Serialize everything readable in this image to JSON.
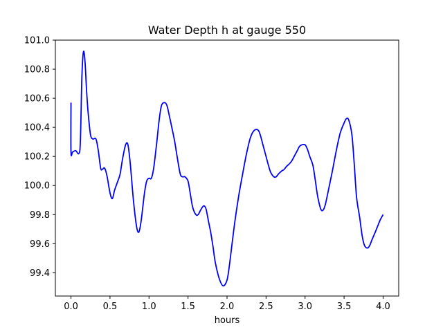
{
  "chart_data": {
    "type": "line",
    "title": "Water Depth h at gauge 550",
    "xlabel": "hours",
    "ylabel": "",
    "xlim": [
      -0.2,
      4.2
    ],
    "ylim": [
      99.24,
      101.0
    ],
    "grid": false,
    "legend": "none",
    "x_ticks": [
      0.0,
      0.5,
      1.0,
      1.5,
      2.0,
      2.5,
      3.0,
      3.5,
      4.0
    ],
    "x_tick_labels": [
      "0.0",
      "0.5",
      "1.0",
      "1.5",
      "2.0",
      "2.5",
      "3.0",
      "3.5",
      "4.0"
    ],
    "y_ticks": [
      99.4,
      99.6,
      99.8,
      100.0,
      100.2,
      100.4,
      100.6,
      100.8,
      101.0
    ],
    "y_tick_labels": [
      "99.4",
      "99.6",
      "99.8",
      "100.0",
      "100.2",
      "100.4",
      "100.6",
      "100.8",
      "101.0"
    ],
    "series": [
      {
        "color": "#0000ff",
        "x": [
          0.0,
          0.0,
          0.02,
          0.06,
          0.1,
          0.12,
          0.14,
          0.16,
          0.18,
          0.2,
          0.22,
          0.25,
          0.28,
          0.32,
          0.35,
          0.38,
          0.4,
          0.43,
          0.46,
          0.5,
          0.53,
          0.56,
          0.6,
          0.63,
          0.66,
          0.7,
          0.73,
          0.76,
          0.8,
          0.84,
          0.87,
          0.9,
          0.94,
          0.97,
          1.0,
          1.03,
          1.06,
          1.1,
          1.13,
          1.16,
          1.2,
          1.23,
          1.26,
          1.3,
          1.33,
          1.36,
          1.4,
          1.43,
          1.46,
          1.5,
          1.53,
          1.56,
          1.6,
          1.63,
          1.66,
          1.7,
          1.73,
          1.76,
          1.79,
          1.82,
          1.85,
          1.9,
          1.95,
          2.0,
          2.03,
          2.06,
          2.1,
          2.15,
          2.2,
          2.25,
          2.3,
          2.35,
          2.4,
          2.43,
          2.46,
          2.5,
          2.53,
          2.56,
          2.6,
          2.63,
          2.66,
          2.7,
          2.73,
          2.76,
          2.8,
          2.83,
          2.86,
          2.9,
          2.93,
          2.96,
          3.0,
          3.03,
          3.06,
          3.1,
          3.13,
          3.16,
          3.2,
          3.23,
          3.26,
          3.3,
          3.35,
          3.4,
          3.45,
          3.5,
          3.53,
          3.56,
          3.6,
          3.63,
          3.66,
          3.7,
          3.73,
          3.76,
          3.8,
          3.83,
          3.86,
          3.9,
          3.93,
          3.96,
          4.0
        ],
        "values": [
          100.57,
          100.23,
          100.23,
          100.24,
          100.22,
          100.3,
          100.75,
          100.92,
          100.85,
          100.65,
          100.5,
          100.35,
          100.32,
          100.32,
          100.24,
          100.12,
          100.11,
          100.12,
          100.07,
          99.95,
          99.91,
          99.97,
          100.03,
          100.08,
          100.18,
          100.28,
          100.28,
          100.15,
          99.9,
          99.72,
          99.68,
          99.76,
          99.94,
          100.03,
          100.05,
          100.05,
          100.12,
          100.3,
          100.45,
          100.55,
          100.57,
          100.55,
          100.48,
          100.38,
          100.3,
          100.2,
          100.08,
          100.06,
          100.06,
          100.03,
          99.94,
          99.85,
          99.8,
          99.8,
          99.83,
          99.86,
          99.84,
          99.76,
          99.68,
          99.58,
          99.47,
          99.36,
          99.31,
          99.35,
          99.45,
          99.58,
          99.75,
          99.93,
          100.08,
          100.22,
          100.33,
          100.38,
          100.38,
          100.34,
          100.28,
          100.2,
          100.14,
          100.09,
          100.06,
          100.06,
          100.08,
          100.1,
          100.11,
          100.13,
          100.15,
          100.17,
          100.2,
          100.24,
          100.27,
          100.28,
          100.28,
          100.25,
          100.2,
          100.14,
          100.04,
          99.93,
          99.84,
          99.83,
          99.87,
          99.97,
          100.1,
          100.24,
          100.36,
          100.43,
          100.46,
          100.45,
          100.35,
          100.15,
          99.92,
          99.78,
          99.66,
          99.59,
          99.57,
          99.59,
          99.63,
          99.68,
          99.72,
          99.76,
          99.8
        ]
      }
    ]
  }
}
